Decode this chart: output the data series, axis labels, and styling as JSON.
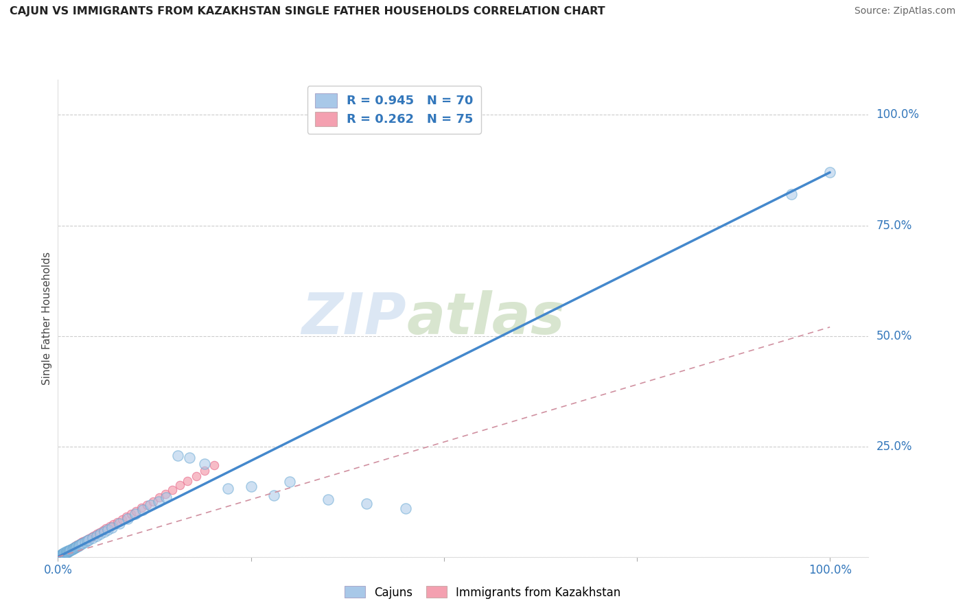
{
  "title": "CAJUN VS IMMIGRANTS FROM KAZAKHSTAN SINGLE FATHER HOUSEHOLDS CORRELATION CHART",
  "source": "Source: ZipAtlas.com",
  "ylabel": "Single Father Households",
  "background_color": "#ffffff",
  "watermark_zip": "ZIP",
  "watermark_atlas": "atlas",
  "blue_color": "#a8c8e8",
  "blue_edge_color": "#6aaad4",
  "pink_color": "#f4a0b0",
  "pink_edge_color": "#e87090",
  "blue_line_color": "#4488cc",
  "pink_line_color": "#d090a0",
  "legend1_label_r": "R = 0.945",
  "legend1_label_n": "N = 70",
  "legend2_label_r": "R = 0.262",
  "legend2_label_n": "N = 75",
  "legend_cajuns": "Cajuns",
  "legend_immigrants": "Immigrants from Kazakhstan",
  "ytick_values": [
    0,
    25,
    50,
    75,
    100
  ],
  "ytick_labels": [
    "0.0%",
    "25.0%",
    "50.0%",
    "75.0%",
    "100.0%"
  ],
  "xtick_values": [
    0,
    25,
    50,
    75,
    100
  ],
  "xtick_labels": [
    "0.0%",
    "",
    "",
    "",
    "100.0%"
  ],
  "xlim": [
    0,
    105
  ],
  "ylim": [
    0,
    108
  ],
  "blue_line_x": [
    0,
    100
  ],
  "blue_line_y": [
    0,
    87
  ],
  "pink_line_x": [
    0,
    100
  ],
  "pink_line_y": [
    0,
    52
  ],
  "cajun_x": [
    0.1,
    0.2,
    0.3,
    0.3,
    0.4,
    0.4,
    0.5,
    0.5,
    0.5,
    0.6,
    0.6,
    0.7,
    0.7,
    0.8,
    0.8,
    0.9,
    0.9,
    1.0,
    1.0,
    1.1,
    1.1,
    1.2,
    1.2,
    1.3,
    1.4,
    1.5,
    1.5,
    1.6,
    1.7,
    1.8,
    1.9,
    2.0,
    2.1,
    2.2,
    2.3,
    2.4,
    2.5,
    2.6,
    2.7,
    2.8,
    3.0,
    3.2,
    3.5,
    3.8,
    4.0,
    4.5,
    5.0,
    5.5,
    6.0,
    6.5,
    7.0,
    8.0,
    9.0,
    10.0,
    11.0,
    12.0,
    13.0,
    14.0,
    15.5,
    17.0,
    19.0,
    22.0,
    25.0,
    28.0,
    30.0,
    35.0,
    40.0,
    45.0,
    95.0,
    100.0
  ],
  "cajun_y": [
    0.1,
    0.2,
    0.2,
    0.3,
    0.3,
    0.4,
    0.4,
    0.5,
    0.6,
    0.5,
    0.7,
    0.6,
    0.8,
    0.7,
    0.9,
    0.8,
    1.0,
    0.9,
    1.1,
    1.0,
    1.2,
    1.1,
    1.3,
    1.2,
    1.3,
    1.4,
    1.5,
    1.5,
    1.6,
    1.7,
    1.8,
    1.9,
    2.0,
    2.1,
    2.2,
    2.3,
    2.4,
    2.5,
    2.6,
    2.7,
    2.9,
    3.1,
    3.4,
    3.7,
    3.9,
    4.3,
    4.8,
    5.3,
    5.7,
    6.2,
    6.7,
    7.6,
    8.7,
    9.7,
    10.7,
    11.7,
    12.6,
    13.5,
    23.0,
    22.5,
    21.0,
    15.5,
    16.0,
    14.0,
    17.0,
    13.0,
    12.0,
    11.0,
    82.0,
    87.0
  ],
  "kaz_x": [
    0.1,
    0.2,
    0.2,
    0.3,
    0.3,
    0.4,
    0.4,
    0.5,
    0.5,
    0.6,
    0.6,
    0.7,
    0.7,
    0.8,
    0.8,
    0.9,
    0.9,
    1.0,
    1.0,
    1.0,
    1.1,
    1.1,
    1.2,
    1.2,
    1.3,
    1.3,
    1.4,
    1.5,
    1.5,
    1.6,
    1.7,
    1.8,
    1.9,
    2.0,
    2.0,
    2.1,
    2.2,
    2.3,
    2.4,
    2.5,
    2.6,
    2.7,
    2.8,
    2.9,
    3.0,
    3.1,
    3.2,
    3.3,
    3.5,
    3.7,
    4.0,
    4.3,
    4.6,
    5.0,
    5.4,
    5.8,
    6.2,
    6.7,
    7.2,
    7.7,
    8.3,
    8.9,
    9.5,
    10.1,
    10.8,
    11.5,
    12.3,
    13.1,
    13.9,
    14.8,
    15.8,
    16.8,
    17.9,
    19.0,
    20.2
  ],
  "kaz_y": [
    0.1,
    0.1,
    0.2,
    0.2,
    0.3,
    0.3,
    0.4,
    0.4,
    0.5,
    0.5,
    0.6,
    0.6,
    0.7,
    0.7,
    0.8,
    0.8,
    0.9,
    0.9,
    1.0,
    1.1,
    1.0,
    1.1,
    1.2,
    1.3,
    1.2,
    1.3,
    1.4,
    1.5,
    1.6,
    1.7,
    1.8,
    1.9,
    2.0,
    2.1,
    2.2,
    2.3,
    2.4,
    2.5,
    2.6,
    2.7,
    2.8,
    2.9,
    3.0,
    3.1,
    3.2,
    3.3,
    3.4,
    3.5,
    3.7,
    3.9,
    4.2,
    4.5,
    4.8,
    5.2,
    5.6,
    6.0,
    6.4,
    6.9,
    7.4,
    7.9,
    8.5,
    9.1,
    9.7,
    10.4,
    11.1,
    11.8,
    12.6,
    13.4,
    14.3,
    15.2,
    16.2,
    17.2,
    18.3,
    19.5,
    20.7
  ]
}
